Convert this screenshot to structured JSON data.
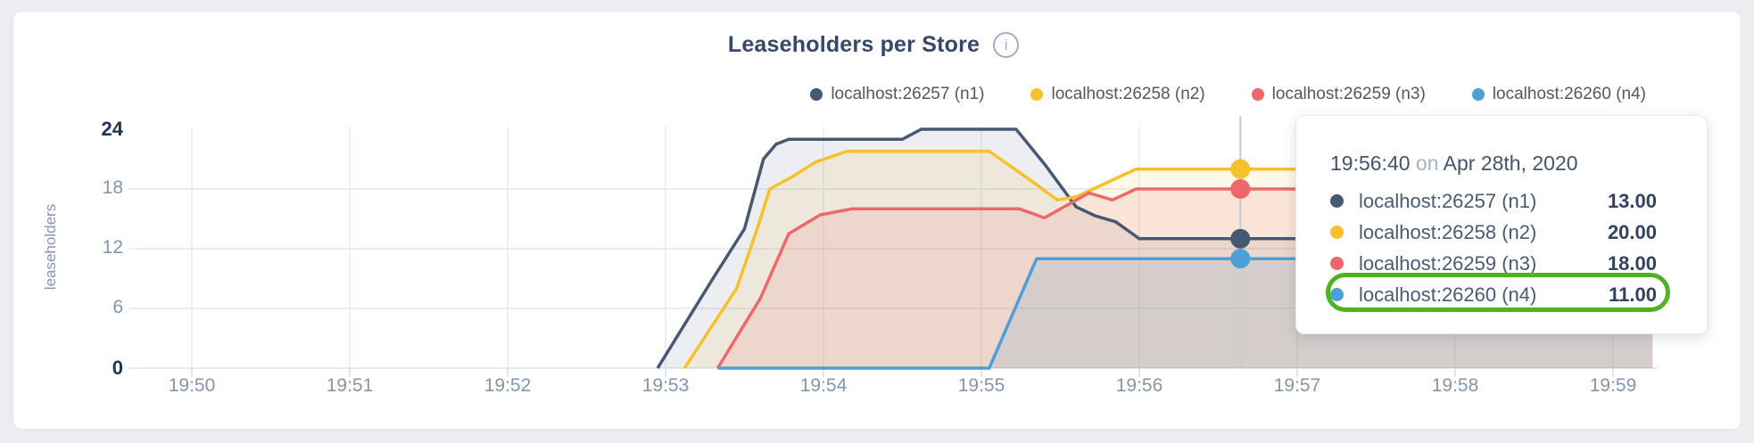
{
  "chart": {
    "title": "Leaseholders per Store",
    "info_icon_glyph": "i",
    "y_axis_label": "leaseholders"
  },
  "legend": {
    "items": [
      {
        "label": "localhost:26257 (n1)",
        "color": "#475872"
      },
      {
        "label": "localhost:26258 (n2)",
        "color": "#f6c12d"
      },
      {
        "label": "localhost:26259 (n3)",
        "color": "#ee686a"
      },
      {
        "label": "localhost:26260 (n4)",
        "color": "#4f9fd6"
      }
    ]
  },
  "tooltip": {
    "time": "19:56:40",
    "connector": "on",
    "date": "Apr 28th, 2020",
    "rows": [
      {
        "label": "localhost:26257 (n1)",
        "value": "13.00",
        "color": "#475872",
        "highlighted": false
      },
      {
        "label": "localhost:26258 (n2)",
        "value": "20.00",
        "color": "#f6c12d",
        "highlighted": false
      },
      {
        "label": "localhost:26259 (n3)",
        "value": "18.00",
        "color": "#ee686a",
        "highlighted": false
      },
      {
        "label": "localhost:26260 (n4)",
        "value": "11.00",
        "color": "#4f9fd6",
        "highlighted": true
      }
    ]
  },
  "annotation": {
    "shape": "rounded-ellipse",
    "color": "#4db31e",
    "target_row": "localhost:26260 (n4)"
  },
  "chart_data": {
    "type": "area",
    "title": "Leaseholders per Store",
    "xlabel": "",
    "ylabel": "leaseholders",
    "x_tick_labels": [
      "19:50",
      "19:51",
      "19:52",
      "19:53",
      "19:54",
      "19:55",
      "19:56",
      "19:57",
      "19:58",
      "19:59"
    ],
    "y_tick_values": [
      0,
      6,
      12,
      18,
      24
    ],
    "ylim": [
      0,
      26
    ],
    "x_unit": "minutes after 19:50",
    "grid": true,
    "legend_position": "top-right",
    "series": [
      {
        "name": "localhost:26257 (n1)",
        "color": "#475872",
        "fill_opacity": 0.1,
        "points": [
          [
            2.95,
            0
          ],
          [
            3.3,
            9
          ],
          [
            3.5,
            14
          ],
          [
            3.62,
            21
          ],
          [
            3.7,
            22.5
          ],
          [
            3.78,
            23
          ],
          [
            4.5,
            23
          ],
          [
            4.62,
            24
          ],
          [
            5.22,
            24
          ],
          [
            5.4,
            20.5
          ],
          [
            5.6,
            16.2
          ],
          [
            5.72,
            15.3
          ],
          [
            5.85,
            14.7
          ],
          [
            6.0,
            13
          ],
          [
            9.25,
            13
          ]
        ]
      },
      {
        "name": "localhost:26258 (n2)",
        "color": "#f6c12d",
        "fill_opacity": 0.11,
        "points": [
          [
            3.12,
            0
          ],
          [
            3.45,
            8
          ],
          [
            3.58,
            14
          ],
          [
            3.66,
            18
          ],
          [
            3.8,
            19.2
          ],
          [
            3.95,
            20.7
          ],
          [
            4.15,
            21.8
          ],
          [
            5.05,
            21.8
          ],
          [
            5.3,
            19
          ],
          [
            5.48,
            16.9
          ],
          [
            5.6,
            17.2
          ],
          [
            5.98,
            20
          ],
          [
            9.25,
            20
          ]
        ]
      },
      {
        "name": "localhost:26259 (n3)",
        "color": "#ee686a",
        "fill_opacity": 0.14,
        "points": [
          [
            3.33,
            0
          ],
          [
            3.6,
            7
          ],
          [
            3.78,
            13.5
          ],
          [
            3.98,
            15.4
          ],
          [
            4.18,
            16
          ],
          [
            5.24,
            16
          ],
          [
            5.4,
            15.1
          ],
          [
            5.68,
            17.6
          ],
          [
            5.83,
            16.9
          ],
          [
            5.98,
            18
          ],
          [
            9.25,
            18
          ]
        ]
      },
      {
        "name": "localhost:26260 (n4)",
        "color": "#4f9fd6",
        "fill_opacity": 0.16,
        "points": [
          [
            3.33,
            0
          ],
          [
            5.05,
            0
          ],
          [
            5.35,
            11
          ],
          [
            9.25,
            11
          ]
        ]
      }
    ],
    "hover": {
      "time": "19:56:40",
      "t": 6.64,
      "values": [
        13,
        20,
        18,
        11
      ]
    }
  }
}
